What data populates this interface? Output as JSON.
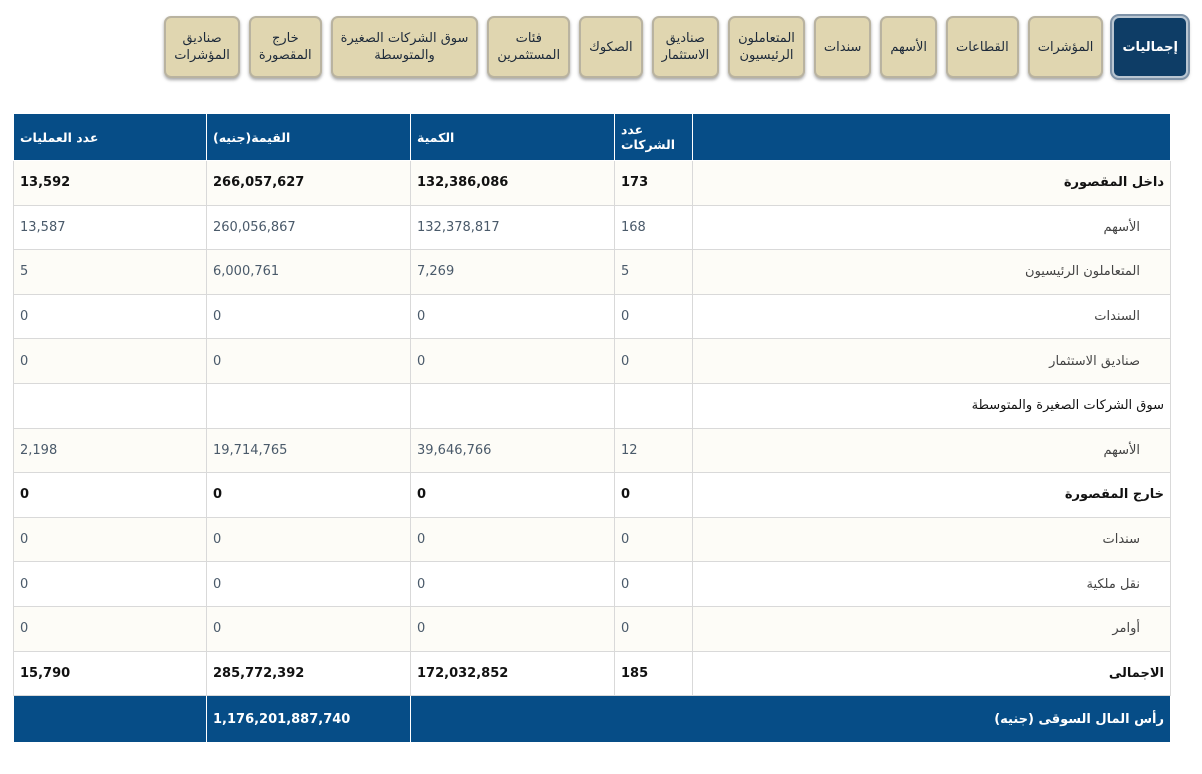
{
  "tabs": [
    {
      "label_lines": [
        "إجماليات"
      ],
      "active": true
    },
    {
      "label_lines": [
        "المؤشرات"
      ],
      "active": false
    },
    {
      "label_lines": [
        "القطاعات"
      ],
      "active": false
    },
    {
      "label_lines": [
        "الأسهم"
      ],
      "active": false
    },
    {
      "label_lines": [
        "سندات"
      ],
      "active": false
    },
    {
      "label_lines": [
        "المتعاملون",
        "الرئيسيون"
      ],
      "active": false
    },
    {
      "label_lines": [
        "صناديق",
        "الاستثمار"
      ],
      "active": false
    },
    {
      "label_lines": [
        "الصكوك"
      ],
      "active": false
    },
    {
      "label_lines": [
        "فئات",
        "المستثمرين"
      ],
      "active": false
    },
    {
      "label_lines": [
        "سوق الشركات الصغيرة",
        "والمتوسطة"
      ],
      "active": false
    },
    {
      "label_lines": [
        "خارج",
        "المقصورة"
      ],
      "active": false
    },
    {
      "label_lines": [
        "صناديق",
        "المؤشرات"
      ],
      "active": false
    }
  ],
  "table": {
    "headers": {
      "label": "",
      "companies": "عدد الشركات",
      "quantity": "الكمية",
      "value": "القيمة(جنيه)",
      "trades": "عدد العمليات"
    },
    "rows": [
      {
        "label": "داخل المقصورة",
        "companies": "173",
        "quantity": "132,386,086",
        "value": "266,057,627",
        "trades": "13,592",
        "type": "group bold"
      },
      {
        "label": "الأسهم",
        "companies": "168",
        "quantity": "132,378,817",
        "value": "260,056,867",
        "trades": "13,587",
        "type": "sub"
      },
      {
        "label": "المتعاملون الرئيسيون",
        "companies": "5",
        "quantity": "7,269",
        "value": "6,000,761",
        "trades": "5",
        "type": "sub"
      },
      {
        "label": "السندات",
        "companies": "0",
        "quantity": "0",
        "value": "0",
        "trades": "0",
        "type": "sub"
      },
      {
        "label": "صناديق الاستثمار",
        "companies": "0",
        "quantity": "0",
        "value": "0",
        "trades": "0",
        "type": "sub"
      },
      {
        "label": "سوق الشركات الصغيرة والمتوسطة",
        "companies": "",
        "quantity": "",
        "value": "",
        "trades": "",
        "type": "group"
      },
      {
        "label": "الأسهم",
        "companies": "12",
        "quantity": "39,646,766",
        "value": "19,714,765",
        "trades": "2,198",
        "type": "sub"
      },
      {
        "label": "خارج المقصورة",
        "companies": "0",
        "quantity": "0",
        "value": "0",
        "trades": "0",
        "type": "group bold"
      },
      {
        "label": "سندات",
        "companies": "0",
        "quantity": "0",
        "value": "0",
        "trades": "0",
        "type": "sub"
      },
      {
        "label": "نقل ملكية",
        "companies": "0",
        "quantity": "0",
        "value": "0",
        "trades": "0",
        "type": "sub"
      },
      {
        "label": "أوامر",
        "companies": "0",
        "quantity": "0",
        "value": "0",
        "trades": "0",
        "type": "sub"
      },
      {
        "label": "الاجمالى",
        "companies": "185",
        "quantity": "172,032,852",
        "value": "285,772,392",
        "trades": "15,790",
        "type": "group bold"
      }
    ],
    "market_cap": {
      "label": "رأس المال السوقى (جنيه)",
      "value": "1,176,201,887,740"
    }
  }
}
